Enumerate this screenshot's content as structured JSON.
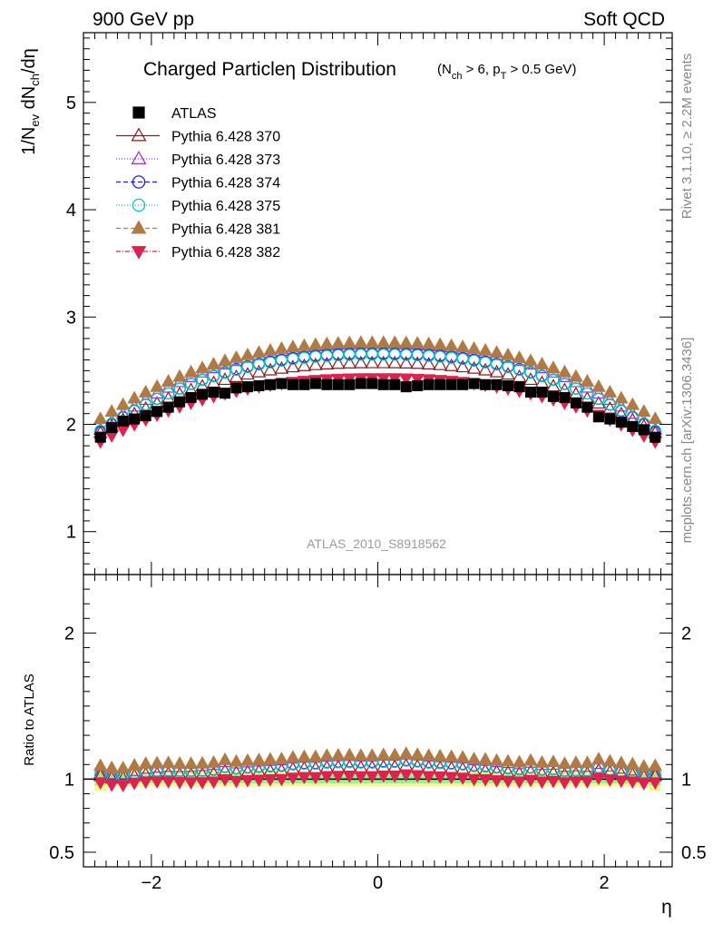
{
  "header": {
    "left": "900 GeV pp",
    "right": "Soft QCD"
  },
  "side_labels": {
    "rivet": "Rivet 3.1.10, ≥ 2.2M events",
    "mcplots": "mcplots.cern.ch [arXiv:1306.3436]"
  },
  "plot_title": {
    "main": "Charged Particleη Distribution",
    "sub": "(N_ch > 6, p_T > 0.5 GeV)"
  },
  "watermark": "ATLAS_2010_S8918562",
  "colors": {
    "data": "#000000",
    "p370": "#8b1a1a",
    "p373": "#9933cc",
    "p374": "#1f1fd6",
    "p375": "#00c8c8",
    "p381": "#b07a45",
    "p382": "#e0204f",
    "band_green": "#8ef28e",
    "band_yellow": "#f7f78a"
  },
  "chart_data": {
    "type": "scatter",
    "x_label": "η",
    "y_label_main": "1/N_ev dN_ch/dη",
    "y_label_ratio": "Ratio to ATLAS",
    "x_range": [
      -2.6,
      2.6
    ],
    "y_range_main": [
      0.6,
      5.65
    ],
    "y_range_ratio": [
      0.4,
      2.4
    ],
    "x_ticks": [
      -2,
      0,
      2
    ],
    "x_tick_labels": [
      "−2",
      "0",
      "2"
    ],
    "y_ticks_main": [
      1,
      2,
      3,
      4,
      5
    ],
    "y_tick_labels_main": [
      "1",
      "2",
      "3",
      "4",
      "5"
    ],
    "y_ticks_ratio": [
      0.5,
      1,
      2
    ],
    "y_tick_labels_ratio": [
      "0.5",
      "1",
      "2"
    ],
    "legend_position": "top-left",
    "eta": [
      -2.45,
      -2.35,
      -2.25,
      -2.15,
      -2.05,
      -1.95,
      -1.85,
      -1.75,
      -1.65,
      -1.55,
      -1.45,
      -1.35,
      -1.25,
      -1.15,
      -1.05,
      -0.95,
      -0.85,
      -0.75,
      -0.65,
      -0.55,
      -0.45,
      -0.35,
      -0.25,
      -0.15,
      -0.05,
      0.05,
      0.15,
      0.25,
      0.35,
      0.45,
      0.55,
      0.65,
      0.75,
      0.85,
      0.95,
      1.05,
      1.15,
      1.25,
      1.35,
      1.45,
      1.55,
      1.65,
      1.75,
      1.85,
      1.95,
      2.05,
      2.15,
      2.25,
      2.35,
      2.45
    ],
    "atlas": [
      1.88,
      1.97,
      2.03,
      2.05,
      2.08,
      2.12,
      2.16,
      2.21,
      2.25,
      2.28,
      2.3,
      2.29,
      2.34,
      2.35,
      2.36,
      2.37,
      2.38,
      2.37,
      2.37,
      2.38,
      2.37,
      2.37,
      2.37,
      2.38,
      2.38,
      2.37,
      2.37,
      2.35,
      2.36,
      2.37,
      2.37,
      2.37,
      2.37,
      2.38,
      2.37,
      2.37,
      2.36,
      2.35,
      2.3,
      2.3,
      2.26,
      2.25,
      2.2,
      2.16,
      2.07,
      2.05,
      2.02,
      1.98,
      1.95,
      1.88
    ],
    "band_rel": [
      0.08,
      0.06,
      0.05,
      0.05,
      0.05,
      0.05,
      0.05,
      0.05,
      0.05,
      0.05,
      0.05,
      0.05,
      0.05,
      0.05,
      0.05,
      0.05,
      0.05,
      0.05,
      0.05,
      0.05,
      0.05,
      0.05,
      0.05,
      0.05,
      0.05,
      0.05,
      0.05,
      0.05,
      0.05,
      0.05,
      0.05,
      0.05,
      0.05,
      0.05,
      0.05,
      0.05,
      0.05,
      0.05,
      0.05,
      0.05,
      0.05,
      0.05,
      0.05,
      0.05,
      0.05,
      0.05,
      0.05,
      0.05,
      0.06,
      0.08
    ],
    "series": [
      {
        "name": "ATLAS",
        "key": "atlas",
        "marker": "square",
        "color_key": "data",
        "dash": ""
      },
      {
        "name": "Pythia 6.428 370",
        "key": "p370",
        "marker": "tri-up-open",
        "color_key": "p370",
        "dash": "",
        "plateau": 2.57,
        "edge": 1.92
      },
      {
        "name": "Pythia 6.428 373",
        "key": "p373",
        "marker": "tri-up-open",
        "color_key": "p373",
        "dash": "1,2",
        "plateau": 2.75,
        "edge": 1.95
      },
      {
        "name": "Pythia 6.428 374",
        "key": "p374",
        "marker": "circle-open",
        "color_key": "p374",
        "dash": "5,3",
        "plateau": 2.66,
        "edge": 1.93
      },
      {
        "name": "Pythia 6.428 375",
        "key": "p375",
        "marker": "circle-open",
        "color_key": "p375",
        "dash": "1,2",
        "plateau": 2.65,
        "edge": 1.94
      },
      {
        "name": "Pythia 6.428 381",
        "key": "p381",
        "marker": "tri-up-filled",
        "color_key": "p381",
        "dash": "5,3",
        "plateau": 2.76,
        "edge": 2.05
      },
      {
        "name": "Pythia 6.428 382",
        "key": "p382",
        "marker": "tri-down-filled",
        "color_key": "p382",
        "dash": "5,2,1,2",
        "plateau": 2.43,
        "edge": 1.84
      }
    ]
  }
}
